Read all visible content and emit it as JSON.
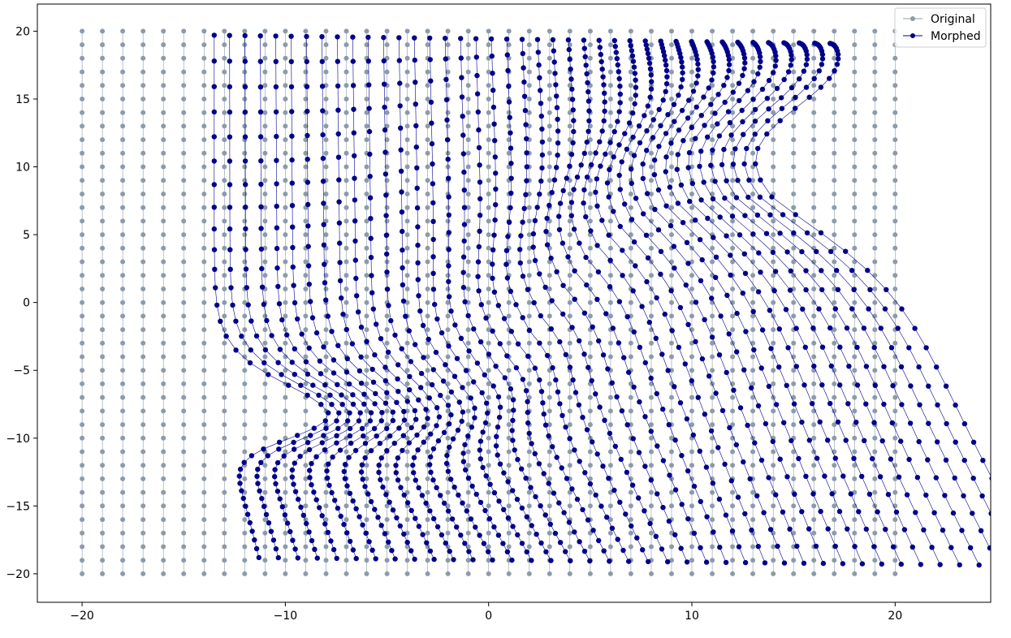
{
  "chart_data": {
    "type": "scatter",
    "title": "",
    "xlabel": "",
    "ylabel": "",
    "xlim": [
      -22.2,
      24.7
    ],
    "ylim": [
      -22.1,
      22.0
    ],
    "x_ticks": [
      -20,
      -10,
      0,
      10,
      20
    ],
    "y_ticks": [
      -20,
      -15,
      -10,
      -5,
      0,
      5,
      10,
      15,
      20
    ],
    "grid": false,
    "legend": {
      "placement": "top-right",
      "entries": [
        "Original",
        "Morphed"
      ]
    },
    "grid_points": {
      "x_min": -20,
      "x_max": 20,
      "y_min": -20,
      "y_max": 20,
      "columns": 41,
      "rows": 41
    },
    "series": [
      {
        "name": "Original",
        "color": "#8c9bab",
        "marker": "circle",
        "description": "regular grid of points from -20 to 20 on both axes, connected column-wise",
        "x_range": [
          -20,
          20
        ],
        "y_range": [
          -20,
          20
        ]
      },
      {
        "name": "Morphed",
        "color": "#00008b",
        "marker": "circle",
        "description": "the same grid after a smooth swirl/shear displacement",
        "x_range": [
          -13.6,
          22.4
        ],
        "y_range": [
          -19.0,
          19.8
        ],
        "top_edge": [
          [
            -13.6,
            19.8
          ],
          [
            0,
            19.4
          ],
          [
            10,
            18.2
          ],
          [
            15,
            16.8
          ],
          [
            19,
            19.3
          ]
        ],
        "bottom_edge": [
          [
            -8.5,
            -17.5
          ],
          [
            -5,
            -18.1
          ],
          [
            5,
            -18.5
          ],
          [
            15,
            -18.8
          ],
          [
            22,
            -19.0
          ]
        ],
        "left_edge": [
          [
            -13.6,
            19.8
          ],
          [
            -13.4,
            5.0
          ],
          [
            -8.5,
            1.0
          ],
          [
            -11.5,
            -5.0
          ],
          [
            -11.7,
            -12.0
          ],
          [
            -8.5,
            -17.5
          ]
        ],
        "right_edge": [
          [
            19.2,
            19.3
          ],
          [
            19.5,
            12.0
          ],
          [
            13.6,
            5.0
          ],
          [
            14.0,
            -2.5
          ],
          [
            21.5,
            -6.0
          ],
          [
            22.4,
            -10.0
          ],
          [
            22.2,
            -19.0
          ]
        ]
      }
    ]
  }
}
